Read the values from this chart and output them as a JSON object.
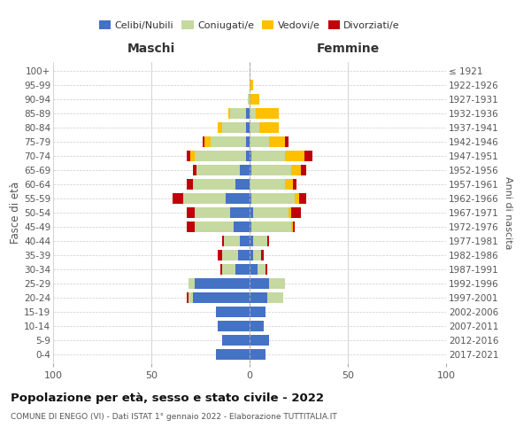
{
  "age_groups": [
    "0-4",
    "5-9",
    "10-14",
    "15-19",
    "20-24",
    "25-29",
    "30-34",
    "35-39",
    "40-44",
    "45-49",
    "50-54",
    "55-59",
    "60-64",
    "65-69",
    "70-74",
    "75-79",
    "80-84",
    "85-89",
    "90-94",
    "95-99",
    "100+"
  ],
  "birth_years": [
    "2017-2021",
    "2012-2016",
    "2007-2011",
    "2002-2006",
    "1997-2001",
    "1992-1996",
    "1987-1991",
    "1982-1986",
    "1977-1981",
    "1972-1976",
    "1967-1971",
    "1962-1966",
    "1957-1961",
    "1952-1956",
    "1947-1951",
    "1942-1946",
    "1937-1941",
    "1932-1936",
    "1927-1931",
    "1922-1926",
    "≤ 1921"
  ],
  "males": {
    "celibi": [
      17,
      14,
      16,
      17,
      29,
      28,
      7,
      6,
      5,
      8,
      10,
      12,
      7,
      5,
      2,
      2,
      2,
      2,
      0,
      0,
      0
    ],
    "coniugati": [
      0,
      0,
      0,
      0,
      2,
      3,
      7,
      8,
      8,
      20,
      18,
      22,
      22,
      22,
      26,
      18,
      12,
      8,
      1,
      0,
      0
    ],
    "vedovi": [
      0,
      0,
      0,
      0,
      0,
      0,
      0,
      0,
      0,
      0,
      0,
      0,
      0,
      0,
      2,
      3,
      2,
      1,
      0,
      0,
      0
    ],
    "divorziati": [
      0,
      0,
      0,
      0,
      1,
      0,
      1,
      2,
      1,
      4,
      4,
      5,
      3,
      2,
      2,
      1,
      0,
      0,
      0,
      0,
      0
    ]
  },
  "females": {
    "nubili": [
      8,
      10,
      7,
      8,
      9,
      10,
      4,
      2,
      2,
      1,
      2,
      1,
      0,
      1,
      1,
      0,
      0,
      0,
      0,
      0,
      0
    ],
    "coniugate": [
      0,
      0,
      0,
      0,
      8,
      8,
      4,
      4,
      7,
      20,
      18,
      22,
      18,
      20,
      17,
      10,
      5,
      3,
      0,
      0,
      0
    ],
    "vedove": [
      0,
      0,
      0,
      0,
      0,
      0,
      0,
      0,
      0,
      1,
      1,
      2,
      4,
      5,
      10,
      8,
      10,
      12,
      5,
      2,
      0
    ],
    "divorziate": [
      0,
      0,
      0,
      0,
      0,
      0,
      1,
      1,
      1,
      1,
      5,
      4,
      2,
      3,
      4,
      2,
      0,
      0,
      0,
      0,
      0
    ]
  },
  "colors": {
    "celibi": "#4472c4",
    "coniugati": "#c5d9a0",
    "vedovi": "#ffc000",
    "divorziati": "#c0000a"
  },
  "title": "Popolazione per età, sesso e stato civile - 2022",
  "subtitle": "COMUNE DI ENEGO (VI) - Dati ISTAT 1° gennaio 2022 - Elaborazione TUTTITALIA.IT",
  "xlabel_left": "Maschi",
  "xlabel_right": "Femmine",
  "ylabel_left": "Fasce di età",
  "ylabel_right": "Anni di nascita",
  "xlim": 100,
  "legend_labels": [
    "Celibi/Nubili",
    "Coniugati/e",
    "Vedovi/e",
    "Divorziati/e"
  ]
}
